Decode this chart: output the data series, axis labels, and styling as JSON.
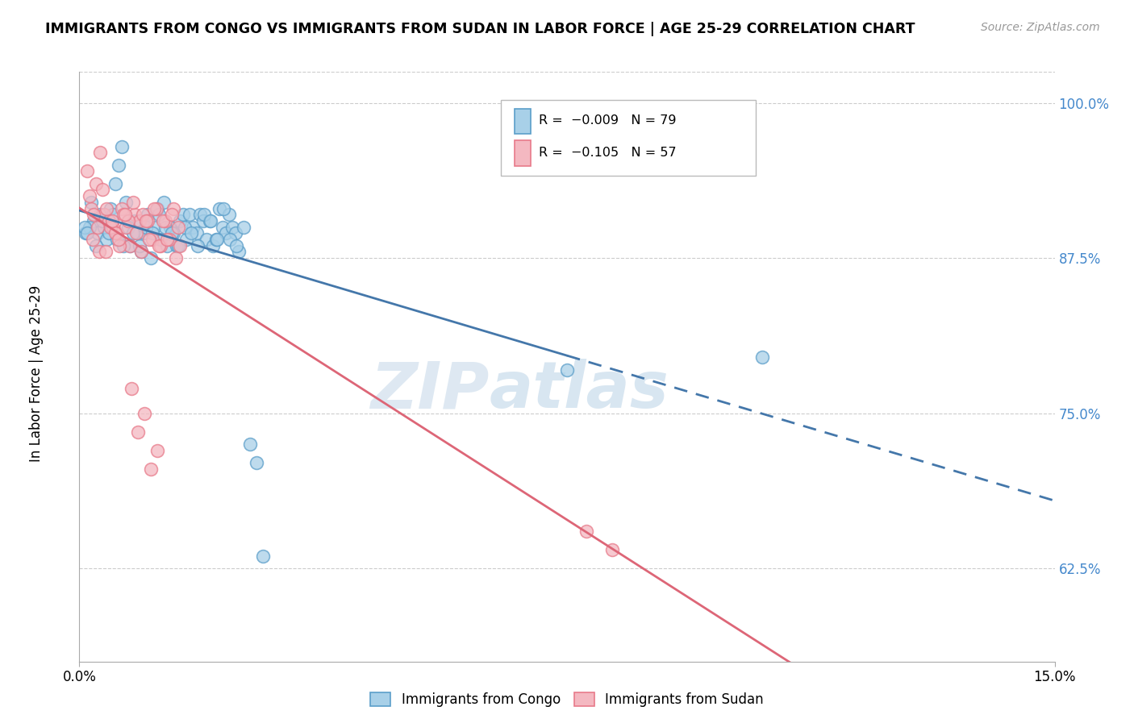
{
  "title": "IMMIGRANTS FROM CONGO VS IMMIGRANTS FROM SUDAN IN LABOR FORCE | AGE 25-29 CORRELATION CHART",
  "source": "Source: ZipAtlas.com",
  "ylabel": "In Labor Force | Age 25-29",
  "xlim": [
    0.0,
    15.0
  ],
  "ylim": [
    55.0,
    102.5
  ],
  "yticks": [
    62.5,
    75.0,
    87.5,
    100.0
  ],
  "ytick_labels": [
    "62.5%",
    "75.0%",
    "87.5%",
    "100.0%"
  ],
  "xtick_labels": [
    "0.0%",
    "15.0%"
  ],
  "legend_r1": "-0.009",
  "legend_n1": "79",
  "legend_r2": "-0.105",
  "legend_n2": "57",
  "color_congo": "#a8d0e8",
  "color_sudan": "#f4b8c1",
  "color_congo_edge": "#5b9ec9",
  "color_sudan_edge": "#e87a8a",
  "color_congo_line": "#4477aa",
  "color_sudan_line": "#dd6677",
  "watermark_zip": "ZIP",
  "watermark_atlas": "atlas",
  "congo_x": [
    0.18,
    0.22,
    0.28,
    0.32,
    0.38,
    0.42,
    0.48,
    0.55,
    0.6,
    0.65,
    0.72,
    0.78,
    0.85,
    0.9,
    0.95,
    1.0,
    1.05,
    1.1,
    1.15,
    1.2,
    1.25,
    1.3,
    1.35,
    1.4,
    1.45,
    1.5,
    1.55,
    1.6,
    1.65,
    1.7,
    1.75,
    1.8,
    1.85,
    1.9,
    1.95,
    2.0,
    2.05,
    2.1,
    2.15,
    2.2,
    2.25,
    2.3,
    2.35,
    2.4,
    2.45,
    0.1,
    0.15,
    0.25,
    0.35,
    0.45,
    0.52,
    0.58,
    0.68,
    0.75,
    0.82,
    0.92,
    1.02,
    1.12,
    1.22,
    1.32,
    1.42,
    1.52,
    1.62,
    1.72,
    1.82,
    1.92,
    2.02,
    2.12,
    2.22,
    2.32,
    2.42,
    2.52,
    2.62,
    2.72,
    2.82,
    0.08,
    0.12,
    7.5,
    10.5
  ],
  "congo_y": [
    92.0,
    90.5,
    89.5,
    91.0,
    90.0,
    89.0,
    91.5,
    93.5,
    95.0,
    96.5,
    92.0,
    88.5,
    90.5,
    89.5,
    88.0,
    89.5,
    91.0,
    87.5,
    90.0,
    91.5,
    89.0,
    92.0,
    88.5,
    90.0,
    89.5,
    88.5,
    90.5,
    91.0,
    89.0,
    91.0,
    90.0,
    89.5,
    91.0,
    90.5,
    89.0,
    90.5,
    88.5,
    89.0,
    91.5,
    90.0,
    89.5,
    91.0,
    90.0,
    89.5,
    88.0,
    89.5,
    90.0,
    88.5,
    90.5,
    89.5,
    91.0,
    89.0,
    88.5,
    90.0,
    89.5,
    88.5,
    90.0,
    89.5,
    91.0,
    90.0,
    89.5,
    88.5,
    90.0,
    89.5,
    88.5,
    91.0,
    90.5,
    89.0,
    91.5,
    89.0,
    88.5,
    90.0,
    72.5,
    71.0,
    63.5,
    90.0,
    89.5,
    78.5,
    79.5
  ],
  "sudan_x": [
    0.12,
    0.18,
    0.25,
    0.32,
    0.38,
    0.45,
    0.52,
    0.58,
    0.65,
    0.72,
    0.78,
    0.85,
    0.92,
    0.98,
    1.05,
    1.12,
    1.18,
    1.25,
    1.32,
    1.38,
    1.45,
    1.52,
    0.15,
    0.22,
    0.28,
    0.35,
    0.42,
    0.48,
    0.55,
    0.62,
    0.68,
    0.75,
    0.82,
    0.88,
    0.95,
    1.02,
    1.08,
    1.15,
    1.22,
    1.28,
    1.35,
    1.42,
    1.48,
    1.55,
    0.2,
    0.3,
    0.4,
    0.5,
    0.6,
    0.7,
    0.8,
    0.9,
    1.0,
    1.1,
    1.2,
    7.8,
    8.2
  ],
  "sudan_y": [
    94.5,
    91.5,
    93.5,
    96.0,
    91.0,
    90.5,
    90.0,
    89.5,
    91.5,
    90.0,
    88.5,
    91.0,
    90.5,
    91.0,
    90.5,
    89.0,
    91.5,
    88.5,
    90.5,
    89.0,
    91.5,
    90.0,
    92.5,
    91.0,
    90.0,
    93.0,
    91.5,
    90.0,
    89.5,
    88.5,
    91.0,
    90.5,
    92.0,
    89.5,
    88.0,
    90.5,
    89.0,
    91.5,
    88.5,
    90.5,
    89.0,
    91.0,
    87.5,
    88.5,
    89.0,
    88.0,
    88.0,
    90.5,
    89.0,
    91.0,
    77.0,
    73.5,
    75.0,
    70.5,
    72.0,
    65.5,
    64.0
  ]
}
